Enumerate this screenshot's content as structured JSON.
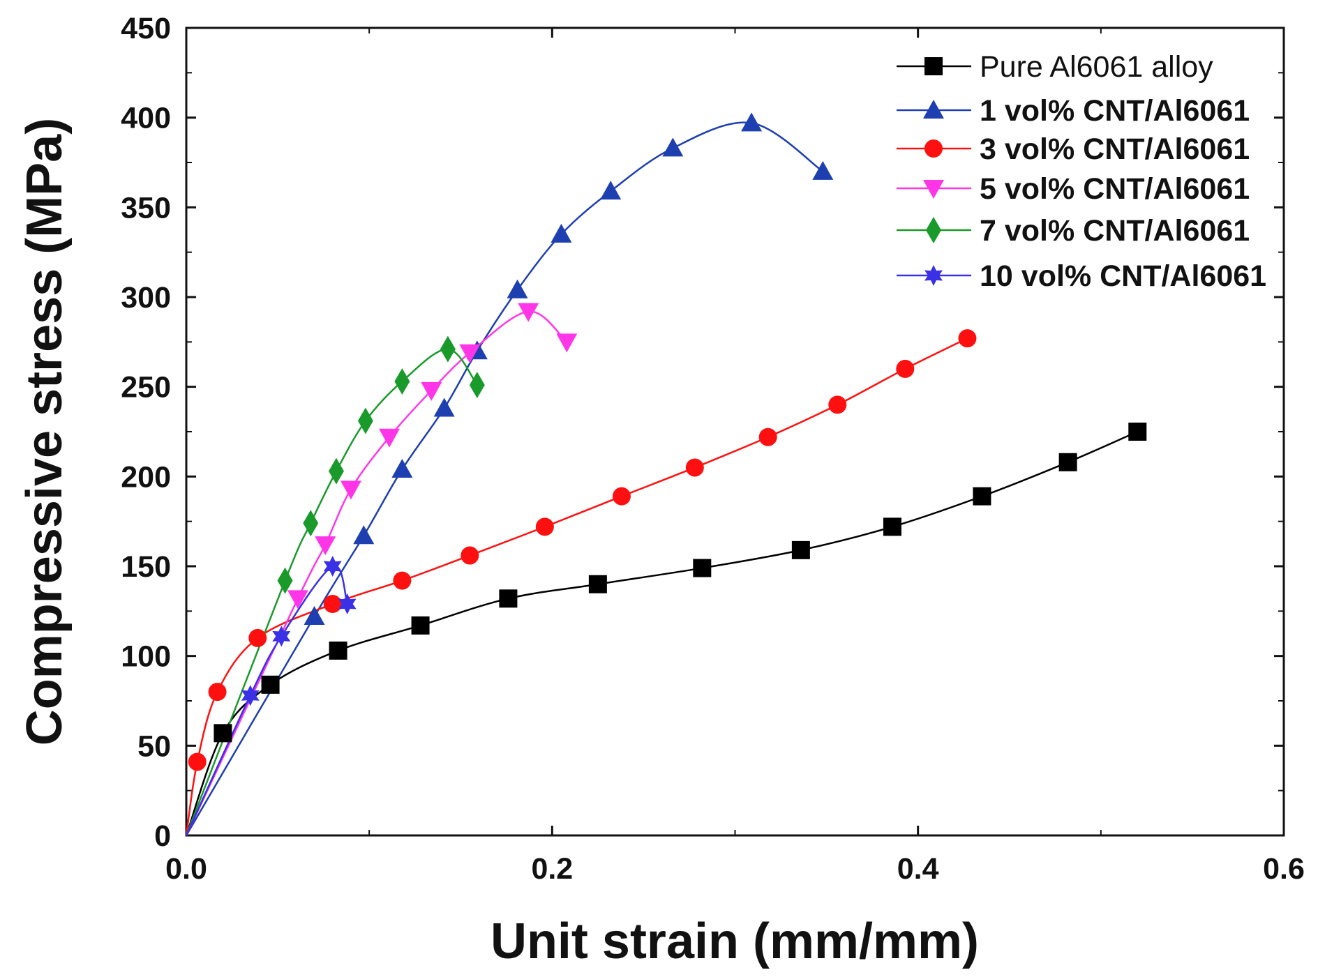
{
  "chart_data": {
    "type": "line",
    "title": "",
    "xlabel": "Unit strain (mm/mm)",
    "ylabel": "Compressive stress (MPa)",
    "xlim": [
      0,
      0.6
    ],
    "ylim": [
      0,
      450
    ],
    "xticks": [
      0.0,
      0.2,
      0.4,
      0.6
    ],
    "xtick_labels": [
      "0.0",
      "0.2",
      "0.4",
      "0.6"
    ],
    "yticks": [
      0,
      50,
      100,
      150,
      200,
      250,
      300,
      350,
      400,
      450
    ],
    "ytick_labels": [
      "0",
      "50",
      "100",
      "150",
      "200",
      "250",
      "300",
      "350",
      "400",
      "450"
    ],
    "grid": false,
    "legend_position": "top-right",
    "series": [
      {
        "name": "Pure Al6061 alloy",
        "color": "#000000",
        "marker": "square",
        "x": [
          0,
          0.02,
          0.046,
          0.083,
          0.128,
          0.176,
          0.225,
          0.282,
          0.336,
          0.386,
          0.435,
          0.482,
          0.52
        ],
        "y": [
          0,
          57,
          84,
          103,
          117,
          132,
          140,
          149,
          159,
          172,
          189,
          208,
          225
        ]
      },
      {
        "name": "1 vol% CNT/Al6061",
        "color": "#1e3faf",
        "marker": "triangle-up",
        "x": [
          0,
          0.07,
          0.097,
          0.118,
          0.141,
          0.159,
          0.181,
          0.205,
          0.232,
          0.266,
          0.309,
          0.348
        ],
        "y": [
          0,
          122,
          167,
          204,
          238,
          270,
          304,
          335,
          359,
          383,
          397,
          370
        ]
      },
      {
        "name": "3 vol% CNT/Al6061",
        "color": "#ff1010",
        "marker": "circle",
        "x": [
          0,
          0.006,
          0.017,
          0.039,
          0.08,
          0.118,
          0.155,
          0.196,
          0.238,
          0.278,
          0.318,
          0.356,
          0.393,
          0.427
        ],
        "y": [
          0,
          41,
          80,
          110,
          129,
          142,
          156,
          172,
          189,
          205,
          222,
          240,
          260,
          277
        ]
      },
      {
        "name": "5 vol% CNT/Al6061",
        "color": "#ff36e8",
        "marker": "triangle-down",
        "x": [
          0,
          0.061,
          0.076,
          0.09,
          0.111,
          0.134,
          0.155,
          0.187,
          0.208
        ],
        "y": [
          0,
          132,
          162,
          193,
          222,
          248,
          269,
          292,
          275
        ]
      },
      {
        "name": "7 vol% CNT/Al6061",
        "color": "#1a9a2a",
        "marker": "diamond",
        "x": [
          0,
          0.054,
          0.068,
          0.082,
          0.098,
          0.118,
          0.143,
          0.159
        ],
        "y": [
          0,
          142,
          174,
          203,
          231,
          253,
          271,
          251
        ]
      },
      {
        "name": "10 vol% CNT/Al6061",
        "color": "#3a30e6",
        "marker": "star",
        "x": [
          0,
          0.035,
          0.052,
          0.08,
          0.088
        ],
        "y": [
          0,
          78,
          111,
          150,
          129
        ]
      }
    ]
  }
}
